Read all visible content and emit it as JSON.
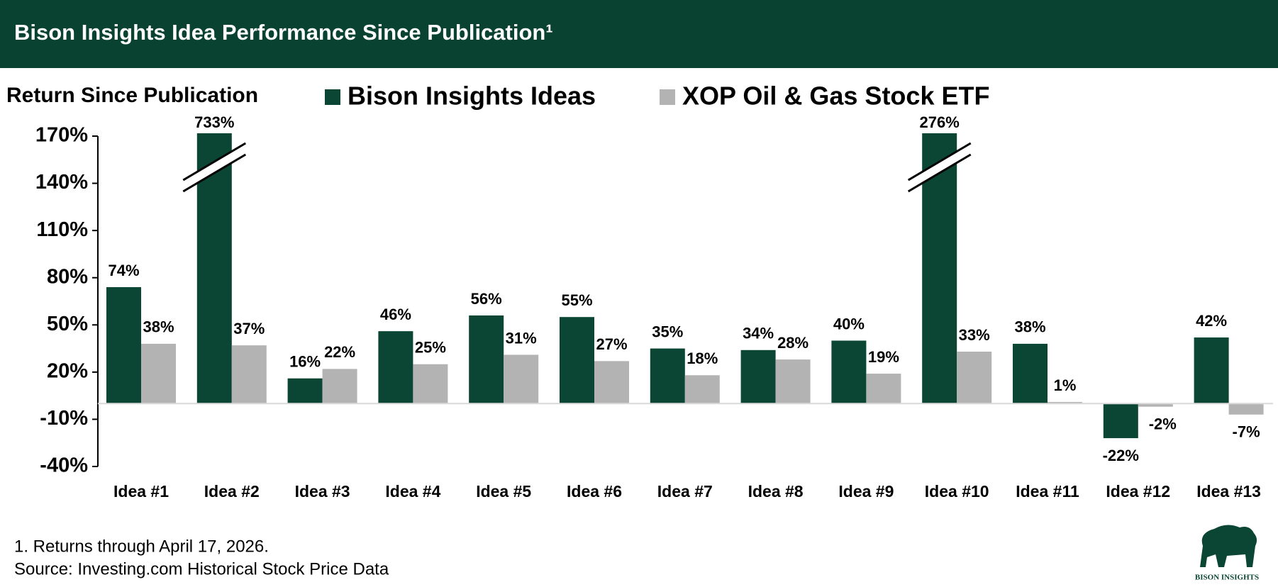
{
  "chart_data": {
    "type": "bar",
    "title": "Bison Insights Idea Performance Since Publication¹",
    "y_label": "Return Since Publication",
    "categories": [
      "Idea #1",
      "Idea #2",
      "Idea #3",
      "Idea #4",
      "Idea #5",
      "Idea #6",
      "Idea #7",
      "Idea #8",
      "Idea #9",
      "Idea #10",
      "Idea #11",
      "Idea #12",
      "Idea #13"
    ],
    "series": [
      {
        "name": "Bison Insights Ideas",
        "color": "#0b4634",
        "values": [
          74,
          733,
          16,
          46,
          56,
          55,
          35,
          34,
          40,
          276,
          38,
          -22,
          42
        ],
        "value_labels": [
          "74%",
          "733%",
          "16%",
          "46%",
          "56%",
          "55%",
          "35%",
          "34%",
          "40%",
          "276%",
          "38%",
          "-22%",
          "42%"
        ]
      },
      {
        "name": "XOP Oil & Gas Stock ETF",
        "color": "#b3b3b3",
        "values": [
          38,
          37,
          22,
          25,
          31,
          27,
          18,
          28,
          19,
          33,
          1,
          -2,
          -7
        ],
        "value_labels": [
          "38%",
          "37%",
          "22%",
          "25%",
          "31%",
          "27%",
          "18%",
          "28%",
          "19%",
          "33%",
          "1%",
          "-2%",
          "-7%"
        ]
      }
    ],
    "ylim": [
      -40,
      170
    ],
    "yticks": [
      {
        "value": -40,
        "label": "-40%"
      },
      {
        "value": -10,
        "label": "-10%"
      },
      {
        "value": 20,
        "label": "20%"
      },
      {
        "value": 50,
        "label": "50%"
      },
      {
        "value": 80,
        "label": "80%"
      },
      {
        "value": 110,
        "label": "110%"
      },
      {
        "value": 140,
        "label": "140%"
      },
      {
        "value": 170,
        "label": "170%"
      }
    ],
    "grid": false,
    "footnotes": [
      "1. Returns through April 17, 2026.",
      "Source: Investing.com Historical Stock Price Data"
    ],
    "logo_text": "BISON INSIGHTS"
  }
}
